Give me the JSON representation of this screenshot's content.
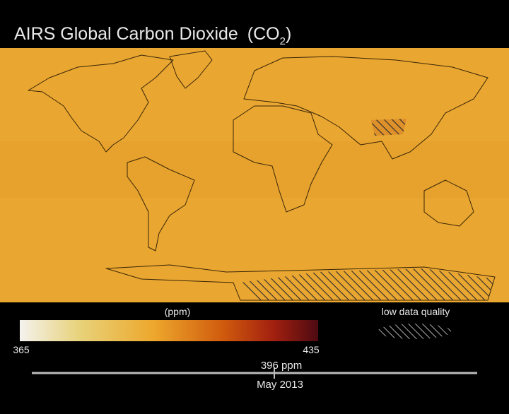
{
  "header": {
    "title": "AIRS Global Carbon Dioxide",
    "formula": "(CO",
    "subscript": "2",
    "formula_close": ")"
  },
  "colorbar": {
    "unit": "(ppm)",
    "min_label": "365",
    "max_label": "435"
  },
  "legend": {
    "hatch_label": "low data quality"
  },
  "timeline": {
    "value": "396 ppm",
    "date": "May 2013"
  }
}
